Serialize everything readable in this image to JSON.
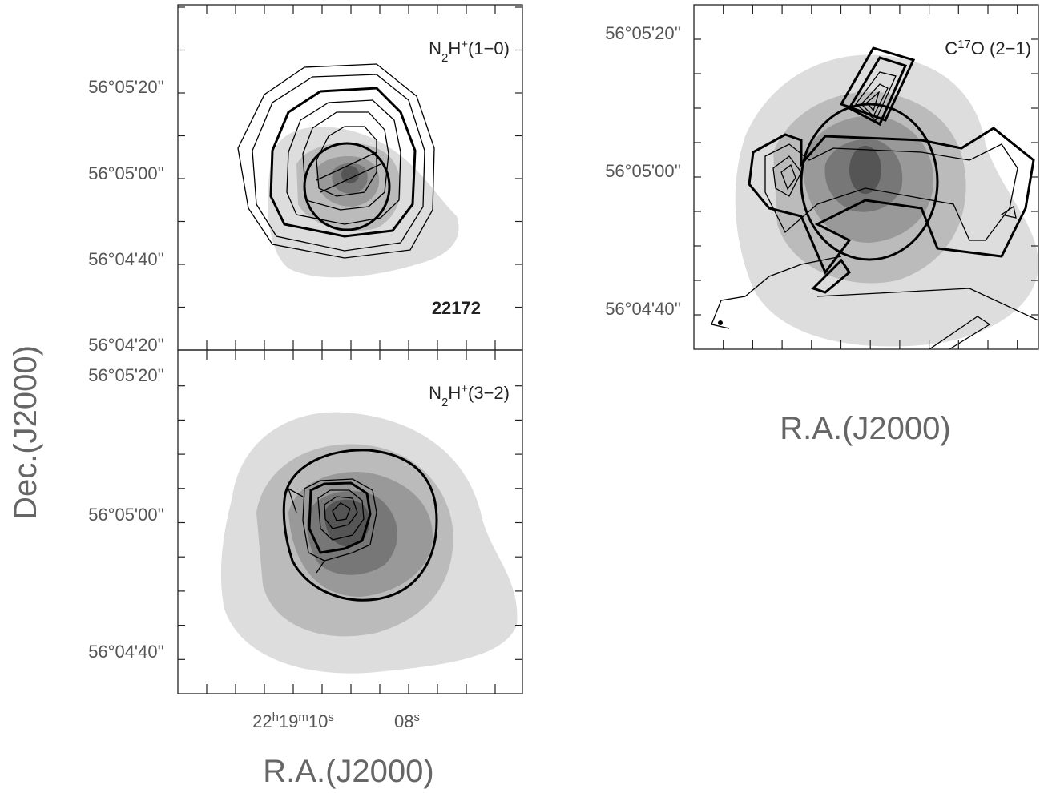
{
  "panels": [
    {
      "label": [
        {
          "text": "N"
        },
        {
          "text": "2",
          "shift": "sub"
        },
        {
          "text": "H"
        },
        {
          "text": "+",
          "shift": "sup"
        },
        {
          "text": "(1−0)"
        }
      ],
      "source": "22172",
      "dec_ticks": [
        "56°05'20''",
        "56°05'00''",
        "56°04'40''",
        "56°04'20''"
      ]
    },
    {
      "label": [
        {
          "text": "N"
        },
        {
          "text": "2",
          "shift": "sub"
        },
        {
          "text": "H"
        },
        {
          "text": "+",
          "shift": "sup"
        },
        {
          "text": "(3−2)"
        }
      ],
      "dec_ticks": [
        "56°05'20''",
        "56°05'00''",
        "56°04'40''"
      ],
      "ra_ticks": [
        [
          {
            "text": "22"
          },
          {
            "text": "h",
            "shift": "sup"
          },
          {
            "text": "19"
          },
          {
            "text": "m",
            "shift": "sup"
          },
          {
            "text": "10"
          },
          {
            "text": "s",
            "shift": "sup"
          }
        ],
        [
          {
            "text": "08"
          },
          {
            "text": "s",
            "shift": "sup"
          }
        ]
      ]
    },
    {
      "label": [
        {
          "text": "C"
        },
        {
          "text": "17",
          "shift": "sup"
        },
        {
          "text": "O (2−1)"
        }
      ],
      "dec_ticks": [
        "56°05'20''",
        "56°05'00''",
        "56°04'40''"
      ]
    }
  ],
  "y_label": "Dec.(J2000)",
  "x_label_left": "R.A.(J2000)",
  "x_label_right": "R.A.(J2000)"
}
